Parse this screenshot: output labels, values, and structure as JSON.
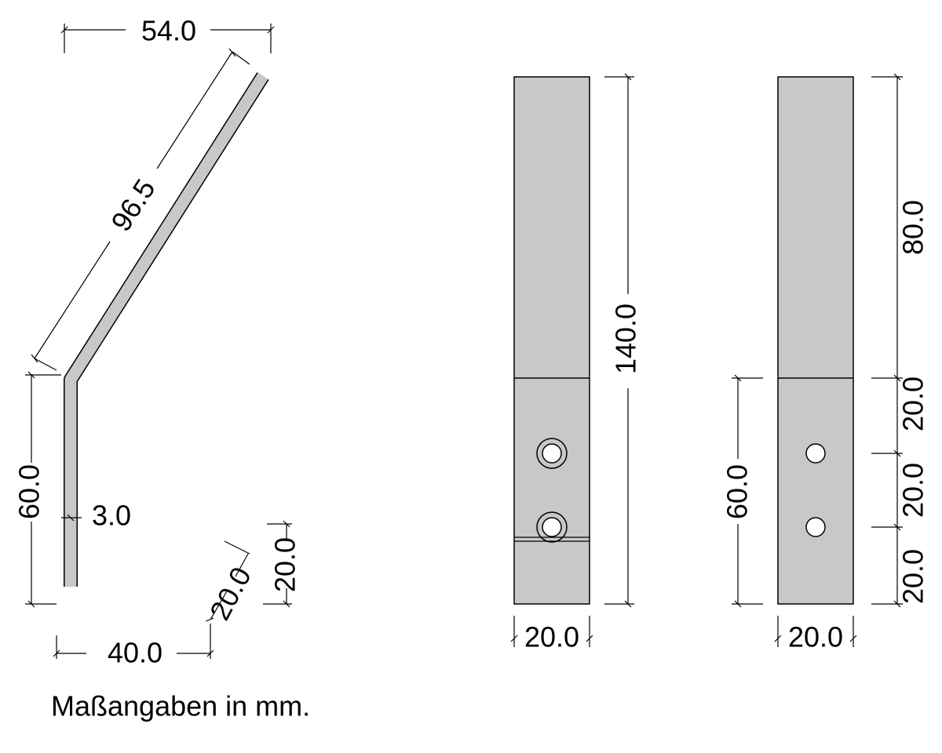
{
  "side_view": {
    "dimensions": [
      "54.0",
      "96.5",
      "60.0",
      "3.0",
      "40.0",
      "20.0",
      "20.0"
    ]
  },
  "front_view": {
    "dimensions": [
      "140.0",
      "20.0"
    ]
  },
  "back_view": {
    "dimensions": [
      "80.0",
      "20.0",
      "20.0",
      "20.0",
      "60.0",
      "20.0"
    ]
  },
  "note": "Maßangaben in mm."
}
